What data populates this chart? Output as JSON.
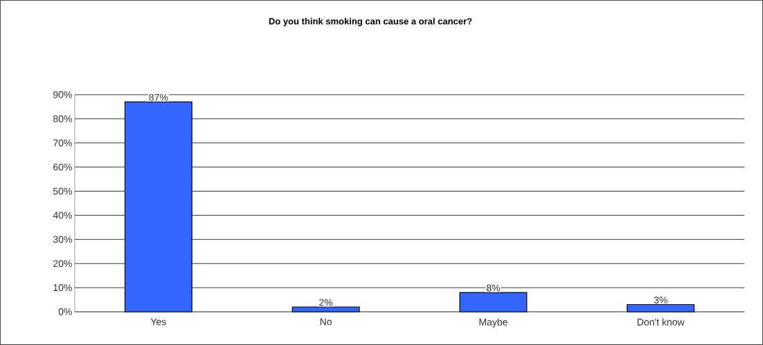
{
  "chart_data": {
    "type": "bar",
    "title": "Do you think smoking can cause a oral cancer?",
    "categories": [
      "Yes",
      "No",
      "Maybe",
      "Don't know"
    ],
    "values": [
      87,
      2,
      8,
      3
    ],
    "value_labels": [
      "87%",
      "2%",
      "8%",
      "3%"
    ],
    "color": "#3366ff",
    "ylim": [
      0,
      90
    ],
    "yticks": [
      {
        "value": 0,
        "label": "0%"
      },
      {
        "value": 10,
        "label": "10%"
      },
      {
        "value": 20,
        "label": "20%"
      },
      {
        "value": 30,
        "label": "30%"
      },
      {
        "value": 40,
        "label": "40%"
      },
      {
        "value": 50,
        "label": "50%"
      },
      {
        "value": 60,
        "label": "60%"
      },
      {
        "value": 70,
        "label": "70%"
      },
      {
        "value": 80,
        "label": "80%"
      },
      {
        "value": 90,
        "label": "90%"
      }
    ],
    "grid": "y"
  }
}
